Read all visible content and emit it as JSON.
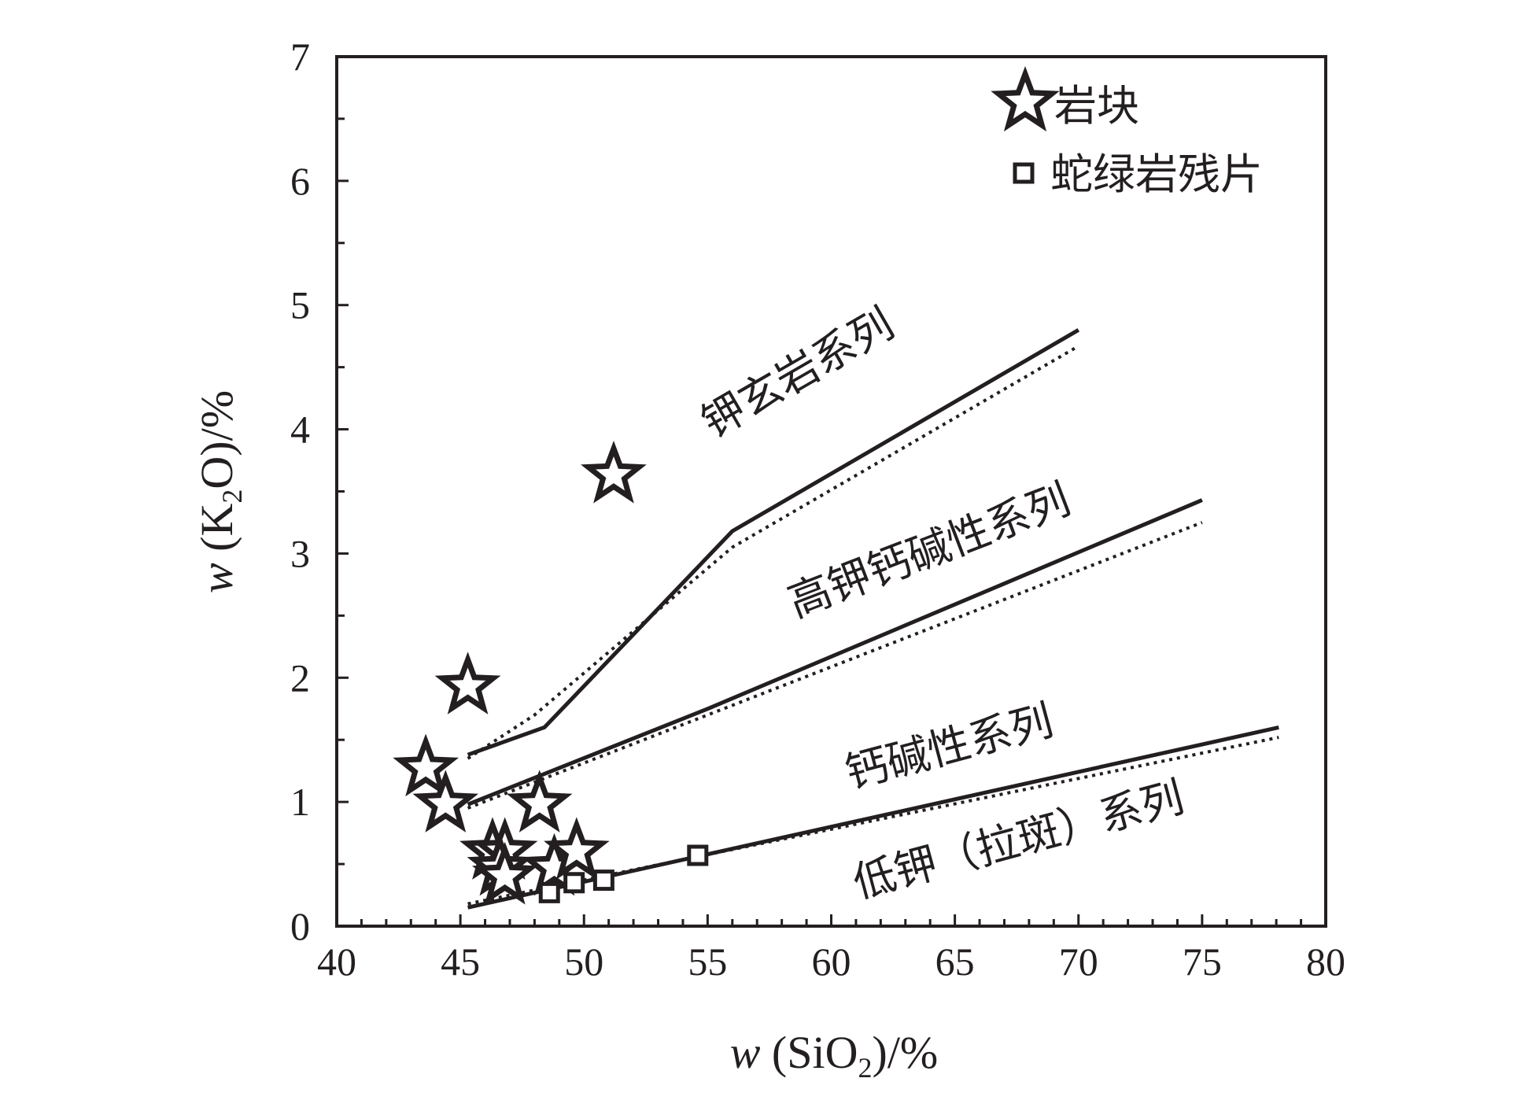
{
  "chart_data": {
    "type": "scatter",
    "title": "",
    "xlabel": {
      "prefix": "w",
      "text": " (SiO",
      "sub": "2",
      "suffix": ")/%"
    },
    "ylabel": {
      "prefix": "w",
      "text": " (K",
      "sub": "2",
      "suffix": "O)/%"
    },
    "xlim": [
      40,
      80
    ],
    "ylim": [
      0,
      7
    ],
    "xticks": [
      "40",
      "45",
      "50",
      "55",
      "60",
      "65",
      "70",
      "75",
      "80"
    ],
    "yticks": [
      "0",
      "1",
      "2",
      "3",
      "4",
      "5",
      "6",
      "7"
    ],
    "grid": false,
    "legend": {
      "position": "top-right",
      "items": [
        {
          "marker": "star",
          "label": "岩块"
        },
        {
          "marker": "square",
          "label": "蛇绿岩残片"
        }
      ]
    },
    "series": [
      {
        "name": "岩块",
        "marker": "star",
        "points": [
          [
            51.2,
            3.63
          ],
          [
            45.3,
            1.93
          ],
          [
            43.6,
            1.27
          ],
          [
            44.4,
            0.98
          ],
          [
            48.2,
            0.98
          ],
          [
            46.3,
            0.6
          ],
          [
            46.8,
            0.6
          ],
          [
            46.6,
            0.47
          ],
          [
            46.8,
            0.4
          ],
          [
            48.8,
            0.47
          ],
          [
            49.7,
            0.6
          ]
        ]
      },
      {
        "name": "蛇绿岩残片",
        "marker": "square",
        "points": [
          [
            48.6,
            0.27
          ],
          [
            49.6,
            0.35
          ],
          [
            50.8,
            0.37
          ],
          [
            54.6,
            0.57
          ]
        ]
      }
    ],
    "boundaries": [
      {
        "name": "shoshonite-upper",
        "style": "solid",
        "points": [
          [
            45.3,
            1.38
          ],
          [
            48.4,
            1.6
          ],
          [
            56.0,
            3.18
          ],
          [
            70.0,
            4.8
          ]
        ]
      },
      {
        "name": "shoshonite-lower",
        "style": "dotted",
        "points": [
          [
            45.3,
            1.35
          ],
          [
            48.0,
            1.7
          ],
          [
            56.0,
            3.05
          ],
          [
            70.0,
            4.67
          ]
        ]
      },
      {
        "name": "highk-upper",
        "style": "solid",
        "points": [
          [
            45.3,
            0.98
          ],
          [
            55.0,
            1.75
          ],
          [
            75.0,
            3.43
          ]
        ]
      },
      {
        "name": "highk-lower",
        "style": "dotted",
        "points": [
          [
            45.3,
            0.95
          ],
          [
            55.0,
            1.7
          ],
          [
            75.0,
            3.25
          ]
        ]
      },
      {
        "name": "lowk-upper",
        "style": "solid",
        "points": [
          [
            45.3,
            0.15
          ],
          [
            78.1,
            1.6
          ]
        ]
      },
      {
        "name": "lowk-lower",
        "style": "dotted",
        "points": [
          [
            45.3,
            0.18
          ],
          [
            78.1,
            1.52
          ]
        ]
      }
    ],
    "series_labels": [
      {
        "text": "钾玄岩系列",
        "x": 58.7,
        "y": 4.43,
        "angle": -30
      },
      {
        "text": "高钾钙碱性系列",
        "x": 64.0,
        "y": 3.0,
        "angle": -21
      },
      {
        "text": "钙碱性系列",
        "x": 64.8,
        "y": 1.42,
        "angle": -15
      },
      {
        "text": "低钾（拉斑）系列",
        "x": 67.6,
        "y": 0.67,
        "angle": -15
      }
    ]
  }
}
